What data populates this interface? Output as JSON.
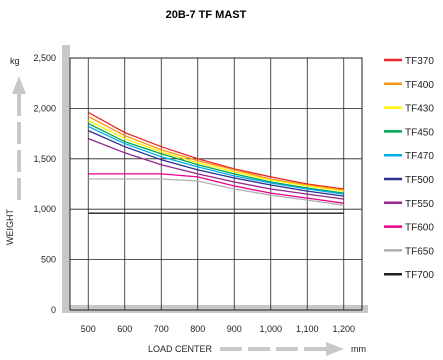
{
  "chart_data": {
    "type": "line",
    "title": "20B-7 TF MAST",
    "xlabel": "LOAD CENTER",
    "xunit": "mm",
    "ylabel": "WEIGHT",
    "yunit": "kg",
    "xlim": [
      450,
      1250
    ],
    "ylim": [
      0,
      2500
    ],
    "x_ticks": [
      500,
      600,
      700,
      800,
      900,
      1000,
      1100,
      1200
    ],
    "x_tick_labels": [
      "500",
      "600",
      "700",
      "800",
      "900",
      "1,000",
      "1,100",
      "1,200"
    ],
    "y_ticks": [
      0,
      500,
      1000,
      1500,
      2000,
      2500
    ],
    "y_tick_labels": [
      "0",
      "500",
      "1,000",
      "1,500",
      "2,000",
      "2,500"
    ],
    "grid": true,
    "legend_position": "right",
    "x": [
      500,
      600,
      700,
      800,
      900,
      1000,
      1100,
      1200
    ],
    "series": [
      {
        "name": "TF370",
        "color": "#e8262a",
        "values": [
          1960,
          1760,
          1620,
          1500,
          1400,
          1320,
          1250,
          1200
        ]
      },
      {
        "name": "TF400",
        "color": "#f7941d",
        "values": [
          1920,
          1730,
          1590,
          1480,
          1390,
          1300,
          1240,
          1190
        ]
      },
      {
        "name": "TF430",
        "color": "#fff200",
        "values": [
          1880,
          1700,
          1570,
          1460,
          1370,
          1290,
          1230,
          1180
        ]
      },
      {
        "name": "TF450",
        "color": "#00a651",
        "values": [
          1850,
          1670,
          1550,
          1440,
          1350,
          1270,
          1210,
          1160
        ]
      },
      {
        "name": "TF470",
        "color": "#00aeef",
        "values": [
          1820,
          1650,
          1520,
          1420,
          1330,
          1260,
          1200,
          1150
        ]
      },
      {
        "name": "TF500",
        "color": "#2e3192",
        "values": [
          1780,
          1620,
          1490,
          1390,
          1310,
          1240,
          1180,
          1130
        ]
      },
      {
        "name": "TF550",
        "color": "#92278f",
        "values": [
          1700,
          1560,
          1440,
          1350,
          1270,
          1200,
          1150,
          1100
        ]
      },
      {
        "name": "TF600",
        "color": "#ec008c",
        "values": [
          1350,
          1350,
          1350,
          1320,
          1230,
          1160,
          1110,
          1060
        ]
      },
      {
        "name": "TF650",
        "color": "#b0b0b0",
        "values": [
          1300,
          1300,
          1300,
          1280,
          1200,
          1140,
          1090,
          1040
        ]
      },
      {
        "name": "TF700",
        "color": "#231f20",
        "values": [
          960,
          960,
          960,
          960,
          960,
          960,
          960,
          960
        ]
      }
    ]
  }
}
